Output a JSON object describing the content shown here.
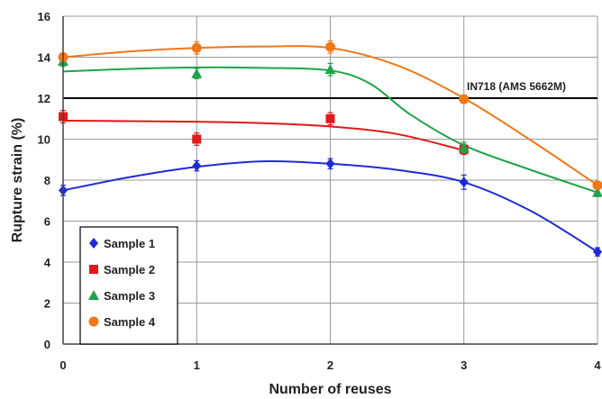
{
  "chart_data": {
    "type": "scatter",
    "title": "",
    "xlabel": "Number of reuses",
    "ylabel": "Rupture strain (%)",
    "xlim": [
      0,
      4
    ],
    "ylim": [
      0,
      16
    ],
    "x_ticks": [
      "0",
      "1",
      "2",
      "3",
      "4"
    ],
    "y_ticks": [
      "0",
      "2",
      "4",
      "6",
      "8",
      "10",
      "12",
      "14",
      "16"
    ],
    "grid": true,
    "legend_position": "bottom-left",
    "reference_line": {
      "y": 12,
      "label": "IN718 (AMS 5662M)",
      "color": "#000000"
    },
    "series": [
      {
        "name": "Sample 1",
        "marker": "diamond",
        "color": "#1f2bd8",
        "points": [
          {
            "x": 0,
            "y": 7.5,
            "err": 0.25
          },
          {
            "x": 1,
            "y": 8.7,
            "err": 0.25
          },
          {
            "x": 2,
            "y": 8.8,
            "err": 0.25
          },
          {
            "x": 3,
            "y": 7.9,
            "err": 0.35
          },
          {
            "x": 4,
            "y": 4.5,
            "err": 0.2
          }
        ],
        "fit": [
          {
            "x": 0,
            "y": 7.5
          },
          {
            "x": 0.5,
            "y": 8.15
          },
          {
            "x": 1,
            "y": 8.65
          },
          {
            "x": 1.5,
            "y": 8.92
          },
          {
            "x": 2,
            "y": 8.8
          },
          {
            "x": 2.5,
            "y": 8.5
          },
          {
            "x": 3,
            "y": 7.9
          },
          {
            "x": 3.5,
            "y": 6.5
          },
          {
            "x": 4,
            "y": 4.5
          }
        ]
      },
      {
        "name": "Sample 2",
        "marker": "square",
        "color": "#e01a1a",
        "points": [
          {
            "x": 0,
            "y": 11.1,
            "err": 0.3
          },
          {
            "x": 1,
            "y": 10.0,
            "err": 0.3
          },
          {
            "x": 2,
            "y": 11.0,
            "err": 0.3
          },
          {
            "x": 3,
            "y": 9.5,
            "err": 0.25
          }
        ],
        "fit": [
          {
            "x": 0,
            "y": 10.9
          },
          {
            "x": 0.5,
            "y": 10.88
          },
          {
            "x": 1,
            "y": 10.85
          },
          {
            "x": 1.5,
            "y": 10.78
          },
          {
            "x": 2,
            "y": 10.62
          },
          {
            "x": 2.5,
            "y": 10.25
          },
          {
            "x": 3,
            "y": 9.45
          }
        ]
      },
      {
        "name": "Sample 3",
        "marker": "triangle",
        "color": "#1fa34a",
        "points": [
          {
            "x": 0,
            "y": 13.8,
            "err": 0.25
          },
          {
            "x": 1,
            "y": 13.2,
            "err": 0.25
          },
          {
            "x": 2,
            "y": 13.4,
            "err": 0.3
          },
          {
            "x": 3,
            "y": 9.6,
            "err": 0.25
          },
          {
            "x": 4,
            "y": 7.4,
            "err": 0.2
          }
        ],
        "fit": [
          {
            "x": 0,
            "y": 13.3
          },
          {
            "x": 0.5,
            "y": 13.43
          },
          {
            "x": 1,
            "y": 13.5
          },
          {
            "x": 1.5,
            "y": 13.48
          },
          {
            "x": 2,
            "y": 13.35
          },
          {
            "x": 2.3,
            "y": 12.7
          },
          {
            "x": 2.6,
            "y": 11.2
          },
          {
            "x": 3,
            "y": 9.7
          },
          {
            "x": 3.5,
            "y": 8.5
          },
          {
            "x": 4,
            "y": 7.4
          }
        ]
      },
      {
        "name": "Sample 4",
        "marker": "circle",
        "color": "#f07818",
        "points": [
          {
            "x": 0,
            "y": 14.0,
            "err": 0.2
          },
          {
            "x": 1,
            "y": 14.45,
            "err": 0.3
          },
          {
            "x": 2,
            "y": 14.5,
            "err": 0.3
          },
          {
            "x": 3,
            "y": 11.95,
            "err": 0.2
          },
          {
            "x": 4,
            "y": 7.75,
            "err": 0.15
          }
        ],
        "fit": [
          {
            "x": 0,
            "y": 14.0
          },
          {
            "x": 0.5,
            "y": 14.28
          },
          {
            "x": 1,
            "y": 14.45
          },
          {
            "x": 1.5,
            "y": 14.52
          },
          {
            "x": 2,
            "y": 14.45
          },
          {
            "x": 2.5,
            "y": 13.6
          },
          {
            "x": 3,
            "y": 12.0
          },
          {
            "x": 3.5,
            "y": 9.95
          },
          {
            "x": 4,
            "y": 7.75
          }
        ]
      }
    ]
  }
}
